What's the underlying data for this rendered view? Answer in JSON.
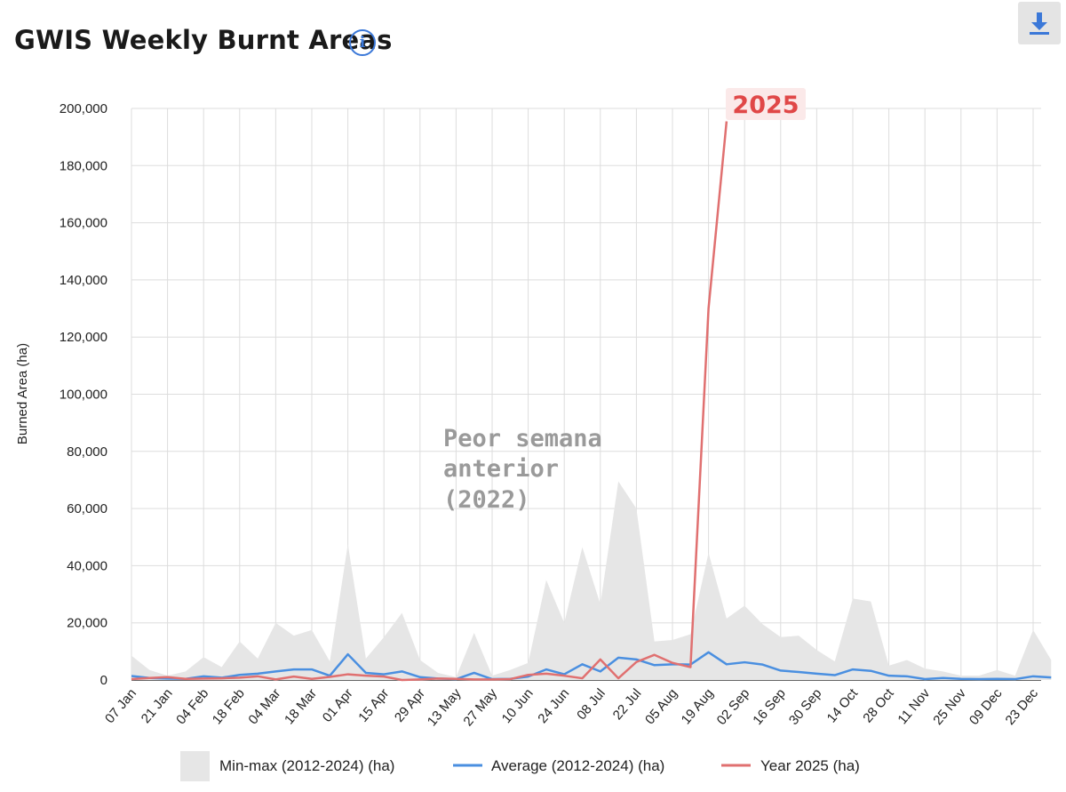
{
  "header": {
    "title": "GWIS Weekly Burnt Areas",
    "info_icon": "info-icon",
    "download_icon": "download-icon"
  },
  "colors": {
    "minmax_fill": "#e6e6e6",
    "average_line": "#4a8fe0",
    "year_line": "#e07070",
    "badge_text": "#e04848",
    "badge_bg": "#fbe9e9"
  },
  "chart_data": {
    "type": "line",
    "title": "GWIS Weekly Burnt Areas",
    "xlabel": "",
    "ylabel": "Burned Area (ha)",
    "ylim": [
      0,
      200000
    ],
    "yticks": [
      "0",
      "20,000",
      "40,000",
      "60,000",
      "80,000",
      "100,000",
      "120,000",
      "140,000",
      "160,000",
      "180,000",
      "200,000"
    ],
    "x_tick_labels": [
      "07 Jan",
      "21 Jan",
      "04 Feb",
      "18 Feb",
      "04 Mar",
      "18 Mar",
      "01 Apr",
      "15 Apr",
      "29 Apr",
      "13 May",
      "27 May",
      "10 Jun",
      "24 Jun",
      "08 Jul",
      "22 Jul",
      "05 Aug",
      "19 Aug",
      "02 Sep",
      "16 Sep",
      "30 Sep",
      "14 Oct",
      "28 Oct",
      "11 Nov",
      "25 Nov",
      "09 Dec",
      "23 Dec"
    ],
    "grid": true,
    "legend_position": "bottom",
    "series": [
      {
        "name": "Min-max (2012-2024) (ha)",
        "kind": "area",
        "values": [
          8500,
          3500,
          1500,
          3000,
          8000,
          4500,
          13500,
          7500,
          20000,
          15500,
          17500,
          6500,
          47500,
          7500,
          15000,
          23500,
          7000,
          2500,
          1000,
          16500,
          1500,
          3500,
          6000,
          35000,
          20000,
          46500,
          26500,
          69500,
          60000,
          13500,
          14000,
          16000,
          44500,
          21500,
          26000,
          19500,
          15000,
          15500,
          10500,
          6500,
          28500,
          27500,
          5000,
          7000,
          4000,
          3000,
          1500,
          1500,
          3500,
          1500,
          17500,
          7000
        ]
      },
      {
        "name": "Average (2012-2024) (ha)",
        "kind": "line",
        "values": [
          1400,
          700,
          500,
          400,
          1300,
          800,
          1800,
          2200,
          3000,
          3700,
          3700,
          1500,
          9000,
          2500,
          2000,
          3000,
          1000,
          500,
          300,
          2500,
          300,
          400,
          1200,
          3700,
          2000,
          5500,
          3000,
          7800,
          7200,
          5200,
          5500,
          5400,
          9700,
          5500,
          6200,
          5400,
          3300,
          2800,
          2200,
          1700,
          3700,
          3200,
          1500,
          1300,
          300,
          700,
          400,
          300,
          400,
          300,
          1300,
          900
        ]
      },
      {
        "name": "Year 2025 (ha)",
        "kind": "line",
        "values": [
          300,
          700,
          1000,
          400,
          500,
          600,
          800,
          1300,
          200,
          1200,
          400,
          1100,
          2000,
          1500,
          1200,
          0,
          200,
          500,
          400,
          200,
          200,
          300,
          1800,
          2200,
          1500,
          600,
          7200,
          600,
          6300,
          8800,
          6000,
          4500,
          130000,
          195500
        ]
      }
    ],
    "annotations": [
      "Peor semana",
      "anterior",
      "(2022)"
    ],
    "label_2025": "2025"
  }
}
